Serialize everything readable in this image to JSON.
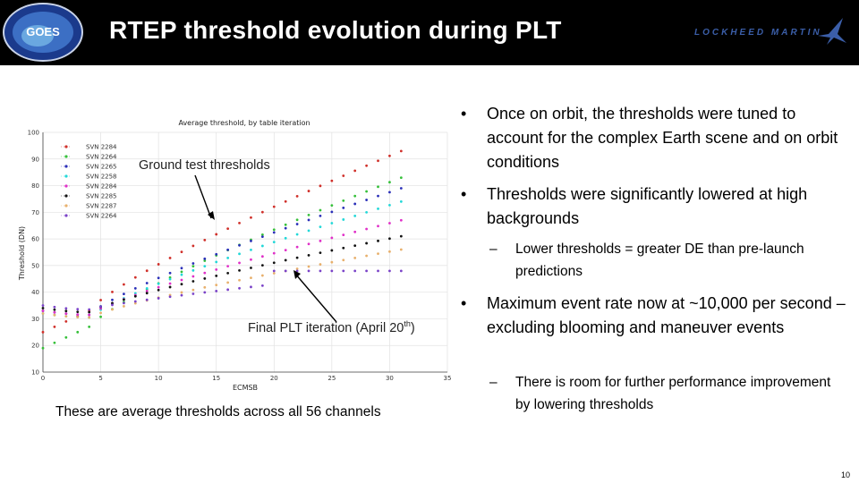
{
  "header": {
    "title": "RTEP threshold evolution during PLT",
    "goes_logo_text": "GOES",
    "lm_logo_text": "LOCKHEED MARTIN"
  },
  "colors": {
    "header_bg": "#000000",
    "title": "#ffffff",
    "lm_blue": "#3b5ea8"
  },
  "chart_data": {
    "type": "scatter",
    "title": "Average threshold, by table iteration",
    "xlabel": "ECMSB",
    "ylabel": "Threshold (DN)",
    "xlim": [
      0,
      35
    ],
    "ylim": [
      10,
      100
    ],
    "xticks": [
      0,
      5,
      10,
      15,
      20,
      25,
      30,
      35
    ],
    "yticks": [
      10,
      20,
      30,
      40,
      50,
      60,
      70,
      80,
      90,
      100
    ],
    "grid": true,
    "legend_position": "top-left",
    "series": [
      {
        "name": "SVN 2284",
        "color": "#d0302a",
        "start": 25,
        "end": 93
      },
      {
        "name": "SVN 2264",
        "color": "#36c03a",
        "start": 19,
        "end": 83
      },
      {
        "name": "SVN 2265",
        "color": "#2a2fb8",
        "start": 33,
        "end": 79
      },
      {
        "name": "SVN 2258",
        "color": "#22d8d8",
        "start": 32,
        "end": 74
      },
      {
        "name": "SVN 2284",
        "color": "#e030c8",
        "start": 33,
        "end": 67
      },
      {
        "name": "SVN 2285",
        "color": "#111111",
        "start": 34,
        "end": 61
      },
      {
        "name": "SVN 2287",
        "color": "#e8b06c",
        "start": 32,
        "end": 56
      },
      {
        "name": "SVN 2264",
        "color": "#7a42c8",
        "start": 35,
        "end": 48
      }
    ],
    "annotations": [
      "Ground test thresholds",
      "Final PLT iteration (April 20th)"
    ]
  },
  "annotations": {
    "ground": "Ground test thresholds",
    "final_main": "Final PLT iteration (April 20",
    "final_sup": "th",
    "final_end": ")"
  },
  "caption": "These are average thresholds across all 56 channels",
  "bullets": [
    {
      "marker": "•",
      "text": "Once on orbit, the thresholds were tuned to account for the complex Earth scene and on orbit conditions"
    },
    {
      "marker": "•",
      "text": "Thresholds were significantly lowered at high backgrounds"
    },
    {
      "marker": "–",
      "text": "Lower thresholds = greater DE than pre-launch predictions"
    },
    {
      "marker": "•",
      "text": "Maximum event rate now at ~10,000 per second – excluding blooming and maneuver events"
    },
    {
      "marker": "–",
      "text": "There is room for further performance improvement by lowering thresholds"
    }
  ],
  "page_number": "10"
}
